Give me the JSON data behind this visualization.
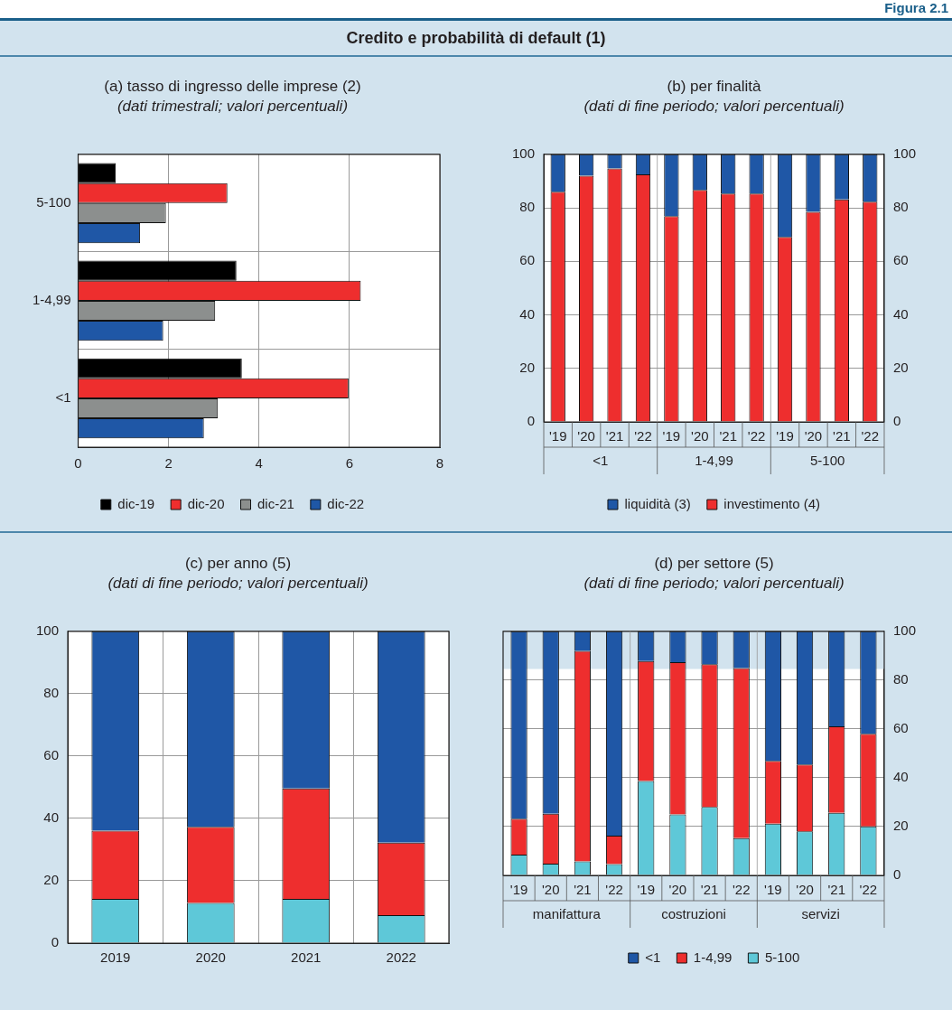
{
  "chart_data": [
    {
      "type": "other",
      "title": "Credito e probabilità di default (1)",
      "annotations": [
        "Figura 2.1"
      ]
    },
    {
      "type": "bar",
      "orientation": "horizontal",
      "title": "(a) tasso di ingresso delle imprese (2)",
      "subtitle": "(dati trimestrali; valori percentuali)",
      "categories": [
        "5-100",
        "1-4,99",
        "<1"
      ],
      "xlim": [
        0,
        8
      ],
      "xticks": [
        0,
        2,
        4,
        6,
        8
      ],
      "grid": true,
      "legend": "bottom",
      "series": [
        {
          "name": "dic-19",
          "color": "#000000",
          "values": [
            0.83,
            3.5,
            3.62
          ]
        },
        {
          "name": "dic-20",
          "color": "#ee2e2e",
          "values": [
            3.3,
            6.25,
            5.98
          ]
        },
        {
          "name": "dic-21",
          "color": "#8c8f8e",
          "values": [
            1.94,
            3.03,
            3.09
          ]
        },
        {
          "name": "dic-22",
          "color": "#1f57a6",
          "values": [
            1.37,
            1.88,
            2.78
          ]
        }
      ]
    },
    {
      "type": "bar",
      "stacked": true,
      "title": "(b) per finalità",
      "subtitle": "(dati di fine periodo; valori percentuali)",
      "categories": [
        "'19",
        "'20",
        "'21",
        "'22",
        "'19",
        "'20",
        "'21",
        "'22",
        "'19",
        "'20",
        "'21",
        "'22"
      ],
      "ylim": [
        0,
        100
      ],
      "yticks": [
        0,
        20,
        40,
        60,
        80,
        100
      ],
      "y2lim": [
        0,
        100
      ],
      "y2ticks": [
        0,
        20,
        40,
        60,
        80,
        100
      ],
      "grid": "y",
      "legend": "bottom",
      "annotations": [
        "<1",
        "1-4,99",
        "5-100"
      ],
      "series": [
        {
          "name": "investimento (4)",
          "color": "#ee2e2e",
          "values": [
            86.0,
            92.0,
            94.7,
            92.5,
            76.9,
            86.7,
            85.3,
            85.3,
            69.1,
            78.5,
            83.1,
            82.3
          ]
        },
        {
          "name": "liquidità (3)",
          "color": "#1f57a6",
          "values": [
            14.0,
            8.0,
            5.3,
            7.5,
            23.1,
            13.3,
            14.7,
            14.7,
            30.9,
            21.5,
            16.9,
            17.7
          ]
        }
      ]
    },
    {
      "type": "bar",
      "stacked": true,
      "title": "(c) per anno (5)",
      "subtitle": "(dati di fine periodo; valori percentuali)",
      "categories": [
        "2019",
        "2020",
        "2021",
        "2022"
      ],
      "ylim": [
        0,
        100
      ],
      "yticks": [
        0,
        20,
        40,
        60,
        80,
        100
      ],
      "grid": true,
      "series": [
        {
          "color": "#5ec8d8",
          "values": [
            14.2,
            12.9,
            14.2,
            9.0
          ]
        },
        {
          "color": "#ee2e2e",
          "values": [
            21.9,
            24.4,
            35.4,
            23.2
          ]
        },
        {
          "color": "#1f57a6",
          "values": [
            63.9,
            62.7,
            50.4,
            67.8
          ]
        }
      ]
    },
    {
      "type": "bar",
      "stacked": true,
      "title": "(d) per settore (5)",
      "subtitle": "(dati di fine periodo; valori percentuali)",
      "categories": [
        "'19",
        "'20",
        "'21",
        "'22",
        "'19",
        "'20",
        "'21",
        "'22",
        "'19",
        "'20",
        "'21",
        "'22"
      ],
      "y2lim": [
        0,
        100
      ],
      "y2ticks": [
        0,
        20,
        40,
        60,
        80,
        100
      ],
      "grid": "y",
      "legend": "bottom",
      "annotations": [
        "manifattura",
        "costruzioni",
        "servizi"
      ],
      "bands": [
        {
          "axis": "y2",
          "from": 84.6,
          "to": 100,
          "color": "#d2e3ee"
        }
      ],
      "series": [
        {
          "name": "5-100",
          "axis": "y2",
          "color": "#5ec8d8",
          "values": [
            8.5,
            4.8,
            5.7,
            4.6,
            38.7,
            25.0,
            28.0,
            15.3,
            21.2,
            18.0,
            25.6,
            20.1
          ]
        },
        {
          "name": "1-4,99",
          "axis": "y2",
          "color": "#ee2e2e",
          "values": [
            14.7,
            20.5,
            86.3,
            11.7,
            49.1,
            62.3,
            58.5,
            69.6,
            25.7,
            27.4,
            35.5,
            37.9
          ]
        },
        {
          "name": "<1",
          "axis": "y2",
          "color": "#1f57a6",
          "values": [
            76.8,
            74.7,
            8.0,
            83.7,
            12.2,
            12.7,
            13.5,
            15.1,
            53.1,
            54.6,
            38.9,
            42.0
          ]
        }
      ]
    }
  ]
}
